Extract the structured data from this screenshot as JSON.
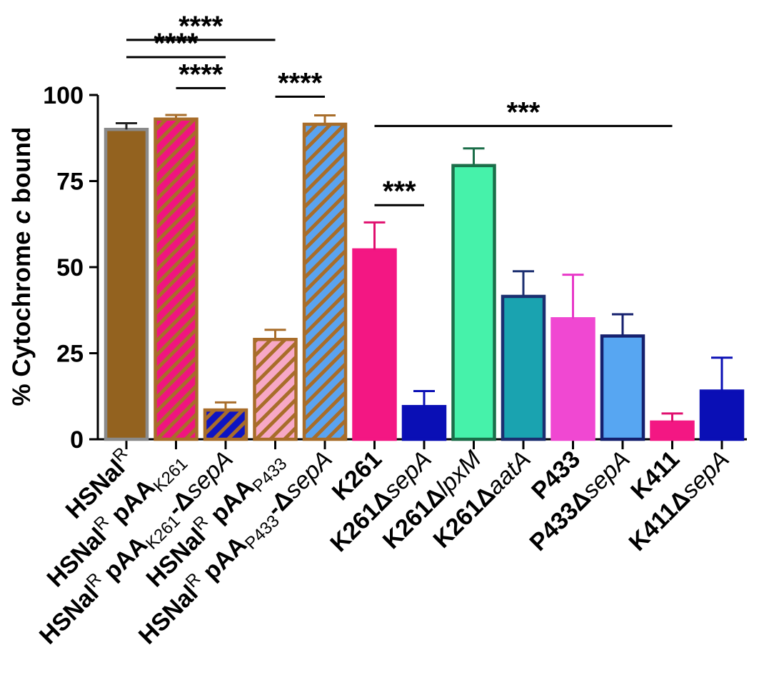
{
  "chart_data": {
    "type": "bar",
    "ylabel_prefix": "% Cytochrome ",
    "ylabel_italic": "c",
    "ylabel_suffix": " bound",
    "xlabel": "",
    "ylim": [
      0,
      100
    ],
    "yticks": [
      "0",
      "25",
      "50",
      "75",
      "100"
    ],
    "categories": [
      {
        "parts": [
          {
            "t": "HSNal",
            "b": true
          },
          {
            "t": "R",
            "b": false,
            "sup": true
          }
        ]
      },
      {
        "parts": [
          {
            "t": "HSNal",
            "b": true
          },
          {
            "t": "R",
            "b": false,
            "sup": true
          },
          {
            "t": " pAA",
            "b": true
          },
          {
            "t": "K261",
            "b": false,
            "sub": true
          }
        ]
      },
      {
        "parts": [
          {
            "t": "HSNal",
            "b": true
          },
          {
            "t": "R",
            "b": false,
            "sup": true
          },
          {
            "t": " pAA",
            "b": true
          },
          {
            "t": "K261",
            "b": false,
            "sub": true
          },
          {
            "t": "-Δ",
            "b": true
          },
          {
            "t": "sepA",
            "b": false,
            "i": true
          }
        ]
      },
      {
        "parts": [
          {
            "t": "HSNal",
            "b": true
          },
          {
            "t": "R",
            "b": false,
            "sup": true
          },
          {
            "t": " pAA",
            "b": true
          },
          {
            "t": "P433",
            "b": false,
            "sub": true
          }
        ]
      },
      {
        "parts": [
          {
            "t": "HSNal",
            "b": true
          },
          {
            "t": "R",
            "b": false,
            "sup": true
          },
          {
            "t": " pAA",
            "b": true
          },
          {
            "t": "P433",
            "b": false,
            "sub": true
          },
          {
            "t": "-Δ",
            "b": true
          },
          {
            "t": "sepA",
            "b": false,
            "i": true
          }
        ]
      },
      {
        "parts": [
          {
            "t": "K261",
            "b": true
          }
        ]
      },
      {
        "parts": [
          {
            "t": "K261Δ",
            "b": true
          },
          {
            "t": "sepA",
            "b": false,
            "i": true
          }
        ]
      },
      {
        "parts": [
          {
            "t": "K261Δ",
            "b": true
          },
          {
            "t": "lpxM",
            "b": false,
            "i": true
          }
        ]
      },
      {
        "parts": [
          {
            "t": "K261Δ",
            "b": true
          },
          {
            "t": "aatA",
            "b": false,
            "i": true
          }
        ]
      },
      {
        "parts": [
          {
            "t": "P433",
            "b": true
          }
        ]
      },
      {
        "parts": [
          {
            "t": "P433Δ",
            "b": true
          },
          {
            "t": "sepA",
            "b": false,
            "i": true
          }
        ]
      },
      {
        "parts": [
          {
            "t": "K411",
            "b": true
          }
        ]
      },
      {
        "parts": [
          {
            "t": "K411Δ",
            "b": true
          },
          {
            "t": "sepA",
            "b": false,
            "i": true
          }
        ]
      }
    ],
    "values": [
      90,
      93,
      8.5,
      29,
      91.5,
      55,
      9.5,
      79.5,
      41.5,
      35,
      30,
      5,
      14
    ],
    "errors": [
      1.8,
      1.2,
      2.2,
      2.8,
      2.6,
      8,
      4.5,
      5,
      7.3,
      12.8,
      6.3,
      2.5,
      9.7
    ],
    "styles": [
      {
        "fill": "#93621f",
        "stroke": "#8a8a8a",
        "hatch": null
      },
      {
        "fill": "#f0157f",
        "stroke": "#a86d2a",
        "hatch": "#a86d2a"
      },
      {
        "fill": "#0e14c2",
        "stroke": "#a86d2a",
        "hatch": "#a86d2a"
      },
      {
        "fill": "#f7a8c6",
        "stroke": "#a86d2a",
        "hatch": "#a86d2a"
      },
      {
        "fill": "#5aa3f0",
        "stroke": "#a86d2a",
        "hatch": "#a86d2a"
      },
      {
        "fill": "#f31783",
        "stroke": "#f31783",
        "hatch": null
      },
      {
        "fill": "#0a0fb5",
        "stroke": "#0a0fb5",
        "hatch": null
      },
      {
        "fill": "#46f2aa",
        "stroke": "#1b6e49",
        "hatch": null
      },
      {
        "fill": "#1aa3b0",
        "stroke": "#1b2f70",
        "hatch": null
      },
      {
        "fill": "#f048d2",
        "stroke": "#f048d2",
        "hatch": null
      },
      {
        "fill": "#57a6f2",
        "stroke": "#15206e",
        "hatch": null
      },
      {
        "fill": "#f31783",
        "stroke": "#f31783",
        "hatch": null
      },
      {
        "fill": "#0a0fb5",
        "stroke": "#0a0fb5",
        "hatch": null
      }
    ],
    "error_colors": [
      "#222222",
      "#a86d2a",
      "#a86d2a",
      "#a86d2a",
      "#a86d2a",
      "#e0106f",
      "#0a0fb5",
      "#1b6e49",
      "#1b2f70",
      "#e838c8",
      "#15206e",
      "#e0106f",
      "#0a0fb5"
    ],
    "significance": [
      {
        "from": 0,
        "to": 3,
        "label": "****",
        "level": 116
      },
      {
        "from": 0,
        "to": 2,
        "label": "****",
        "level": 111
      },
      {
        "from": 1,
        "to": 2,
        "label": "****",
        "level": 102
      },
      {
        "from": 3,
        "to": 4,
        "label": "****",
        "level": 99.5
      },
      {
        "from": 5,
        "to": 11,
        "label": "***",
        "level": 91
      },
      {
        "from": 5,
        "to": 6,
        "label": "***",
        "level": 68
      }
    ]
  }
}
